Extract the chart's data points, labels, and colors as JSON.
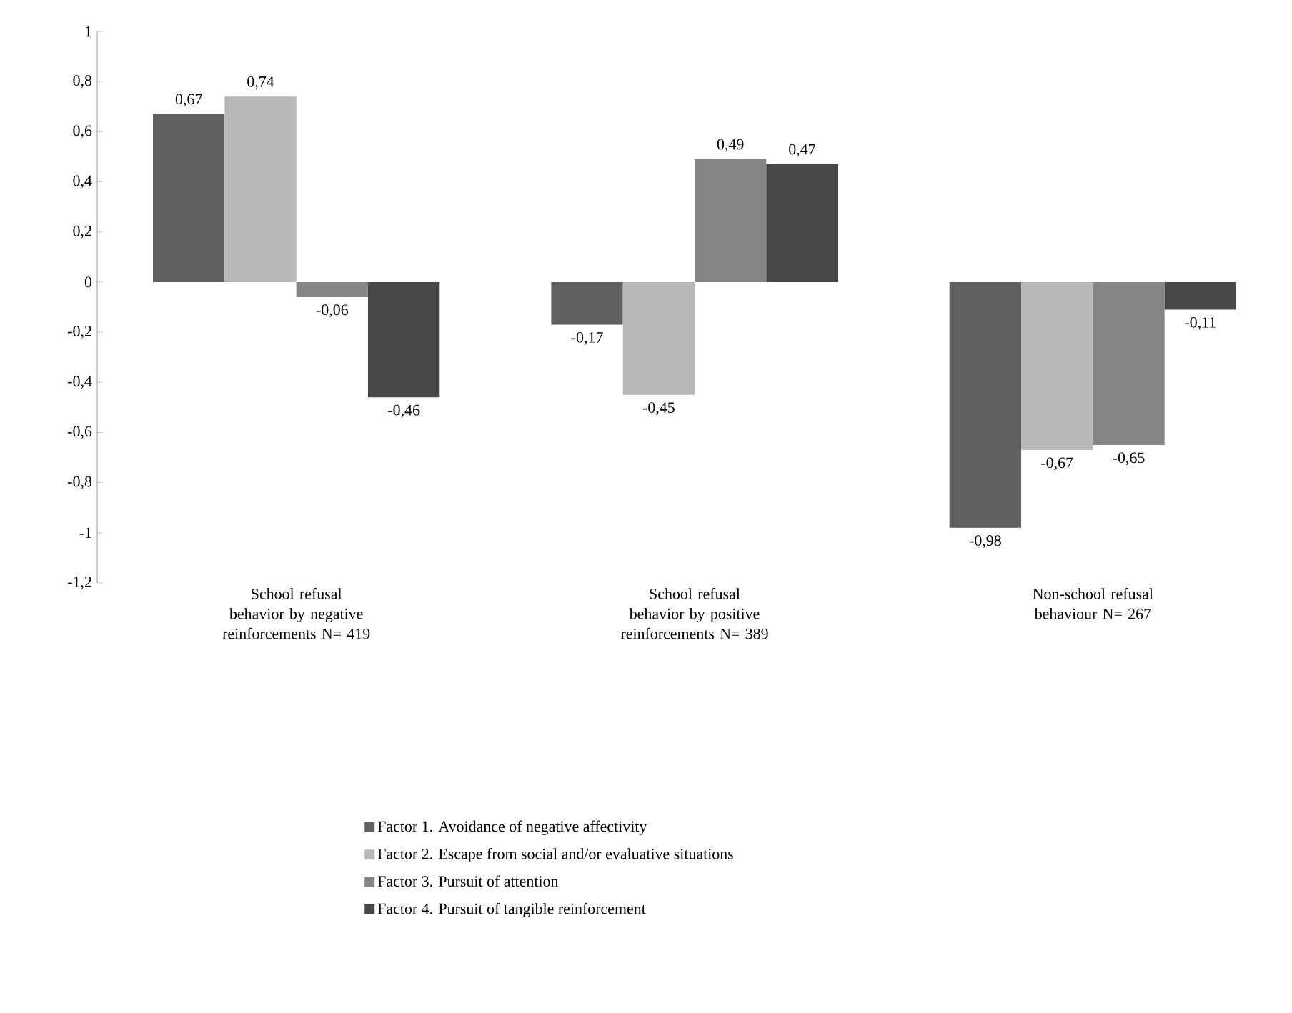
{
  "chart_data": {
    "type": "bar",
    "categories": [
      "School refusal behavior by negative reinforcements N= 419",
      "School refusal behavior by positive reinforcements N= 389",
      "Non-school refusal behaviour N= 267"
    ],
    "series": [
      {
        "name": "Factor 1. Avoidance of negative affectivity",
        "color": "#606060",
        "values": [
          0.67,
          -0.17,
          -0.98
        ],
        "value_labels": [
          "0,67",
          "-0,17",
          "-0,98"
        ]
      },
      {
        "name": "Factor 2. Escape from social and/or evaluative situations",
        "color": "#b8b8b8",
        "values": [
          0.74,
          -0.45,
          -0.67
        ],
        "value_labels": [
          "0,74",
          "-0,45",
          "-0,67"
        ]
      },
      {
        "name": "Factor 3. Pursuit of attention",
        "color": "#858585",
        "values": [
          -0.06,
          0.49,
          -0.65
        ],
        "value_labels": [
          "-0,06",
          "0,49",
          "-0,65"
        ]
      },
      {
        "name": "Factor 4. Pursuit of tangible reinforcement",
        "color": "#474747",
        "values": [
          -0.46,
          0.47,
          -0.11
        ],
        "value_labels": [
          "-0,46",
          "0,47",
          "-0,11"
        ]
      }
    ],
    "ylim": [
      -1.2,
      1
    ],
    "yticks": [
      {
        "value": -1.2,
        "label": "-1,2"
      },
      {
        "value": -1,
        "label": "-1"
      },
      {
        "value": -0.8,
        "label": "-0,8"
      },
      {
        "value": -0.6,
        "label": "-0,6"
      },
      {
        "value": -0.4,
        "label": "-0,4"
      },
      {
        "value": -0.2,
        "label": "-0,2"
      },
      {
        "value": 0,
        "label": "0"
      },
      {
        "value": 0.2,
        "label": "0,2"
      },
      {
        "value": 0.4,
        "label": "0,4"
      },
      {
        "value": 0.6,
        "label": "0,6"
      },
      {
        "value": 0.8,
        "label": "0,8"
      },
      {
        "value": 1,
        "label": "1"
      }
    ],
    "legend": "bottom",
    "grid": false
  }
}
